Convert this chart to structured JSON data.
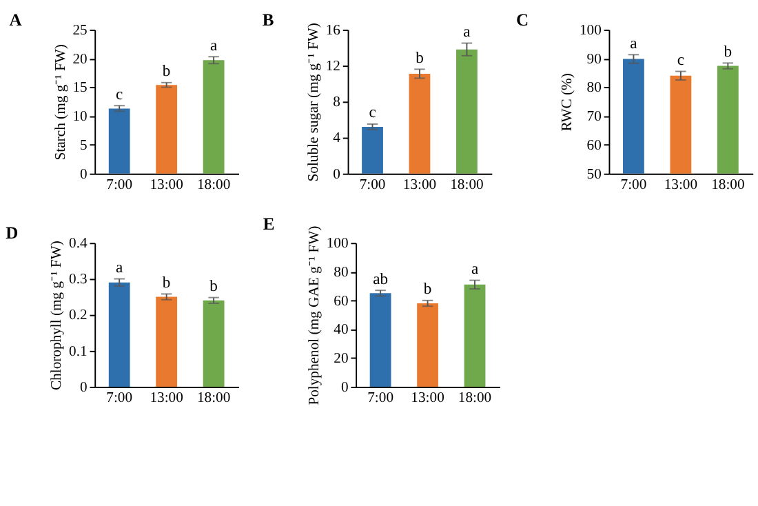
{
  "chart_data": [
    {
      "type": "bar",
      "title": "A",
      "ylabel": "Starch (mg g⁻¹ FW)",
      "categories": [
        "7:00",
        "13:00",
        "18:00"
      ],
      "values": [
        11.3,
        15.4,
        19.7
      ],
      "errors": [
        0.5,
        0.4,
        0.6
      ],
      "colors": [
        "#2e6fad",
        "#e8792e",
        "#70a94b"
      ],
      "ylim": [
        0,
        25
      ],
      "yticks": [
        0,
        5,
        10,
        15,
        20,
        25
      ],
      "annotations": [
        {
          "text": "c",
          "x": "7:00",
          "y": 11.8
        },
        {
          "text": "b",
          "x": "13:00",
          "y": 15.8
        },
        {
          "text": "a",
          "x": "18:00",
          "y": 20.3
        }
      ]
    },
    {
      "type": "bar",
      "title": "B",
      "ylabel": "Soluble sugar (mg g⁻¹ FW)",
      "categories": [
        "7:00",
        "13:00",
        "18:00"
      ],
      "values": [
        5.2,
        11.1,
        13.8
      ],
      "errors": [
        0.3,
        0.5,
        0.7
      ],
      "colors": [
        "#2e6fad",
        "#e8792e",
        "#70a94b"
      ],
      "ylim": [
        0,
        16
      ],
      "yticks": [
        0,
        4,
        8,
        12,
        16
      ],
      "annotations": [
        {
          "text": "c",
          "x": "7:00",
          "y": 5.5
        },
        {
          "text": "b",
          "x": "13:00",
          "y": 11.6
        },
        {
          "text": "a",
          "x": "18:00",
          "y": 14.5
        }
      ]
    },
    {
      "type": "bar",
      "title": "C",
      "ylabel": "RWC (%)",
      "categories": [
        "7:00",
        "13:00",
        "18:00"
      ],
      "values": [
        89.8,
        84.0,
        87.4
      ],
      "errors": [
        1.5,
        1.5,
        1.0
      ],
      "colors": [
        "#2e6fad",
        "#e8792e",
        "#70a94b"
      ],
      "ylim": [
        50,
        100
      ],
      "yticks": [
        50,
        60,
        70,
        80,
        90,
        100
      ],
      "annotations": [
        {
          "text": "a",
          "x": "7:00",
          "y": 91.3
        },
        {
          "text": "c",
          "x": "13:00",
          "y": 85.5
        },
        {
          "text": "b",
          "x": "18:00",
          "y": 88.4
        }
      ]
    },
    {
      "type": "bar",
      "title": "D",
      "ylabel": "Chlorophyll (mg g⁻¹ FW)",
      "categories": [
        "7:00",
        "13:00",
        "18:00"
      ],
      "values": [
        0.29,
        0.25,
        0.24
      ],
      "errors": [
        0.01,
        0.008,
        0.008
      ],
      "colors": [
        "#2e6fad",
        "#e8792e",
        "#70a94b"
      ],
      "ylim": [
        0,
        0.4
      ],
      "yticks": [
        0,
        0.1,
        0.2,
        0.3,
        0.4
      ],
      "annotations": [
        {
          "text": "a",
          "x": "7:00",
          "y": 0.3
        },
        {
          "text": "b",
          "x": "13:00",
          "y": 0.258
        },
        {
          "text": "b",
          "x": "18:00",
          "y": 0.248
        }
      ]
    },
    {
      "type": "bar",
      "title": "E",
      "ylabel": "Polyphenol (mg GAE g⁻¹ FW)",
      "categories": [
        "7:00",
        "13:00",
        "18:00"
      ],
      "values": [
        65,
        58,
        71
      ],
      "errors": [
        2,
        2,
        3
      ],
      "colors": [
        "#2e6fad",
        "#e8792e",
        "#70a94b"
      ],
      "ylim": [
        0,
        100
      ],
      "yticks": [
        0,
        20,
        40,
        60,
        80,
        100
      ],
      "annotations": [
        {
          "text": "ab",
          "x": "7:00",
          "y": 67
        },
        {
          "text": "b",
          "x": "13:00",
          "y": 60
        },
        {
          "text": "a",
          "x": "18:00",
          "y": 74
        }
      ]
    }
  ]
}
